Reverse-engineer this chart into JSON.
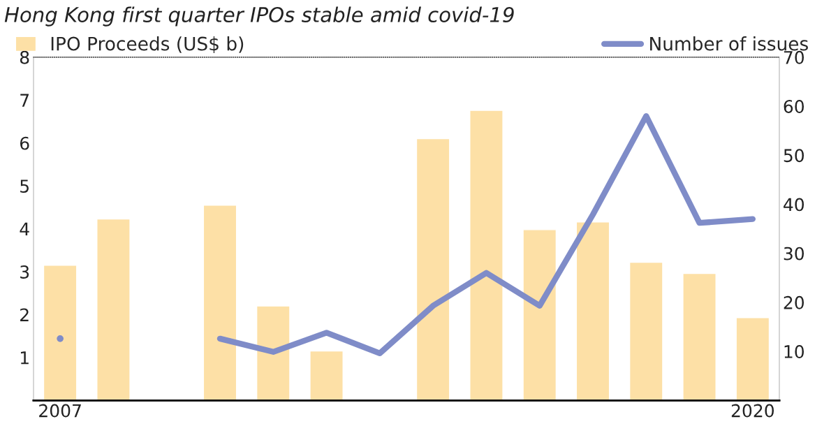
{
  "chart_data": {
    "type": "bar",
    "title": "Hong Kong first quarter IPOs stable amid covid-19",
    "categories": [
      "2007",
      null,
      null,
      null,
      null,
      null,
      null,
      null,
      null,
      null,
      null,
      null,
      null,
      "2020"
    ],
    "series": [
      {
        "name": "IPO Proceeds (US$ b)",
        "color": "#fde0a6",
        "values": [
          3.15,
          4.23,
          null,
          4.55,
          2.2,
          1.15,
          null,
          6.1,
          6.76,
          3.98,
          4.16,
          3.22,
          2.96,
          1.93
        ]
      },
      {
        "name": "Number of issues",
        "type": "line",
        "axis": "y2",
        "color": "#7f8cc8",
        "values": [
          12.6,
          null,
          null,
          12.6,
          9.9,
          13.8,
          9.6,
          19.3,
          26,
          19.3,
          37.9,
          58,
          36.2,
          37
        ]
      }
    ],
    "ylim": [
      0,
      8
    ],
    "yticks": [
      1,
      2,
      3,
      4,
      5,
      6,
      7,
      8
    ],
    "y2lim": [
      0,
      70
    ],
    "y2ticks": [
      10,
      20,
      30,
      40,
      50,
      60,
      70
    ],
    "legend": "top",
    "line_style": "solid",
    "marker": "none"
  }
}
